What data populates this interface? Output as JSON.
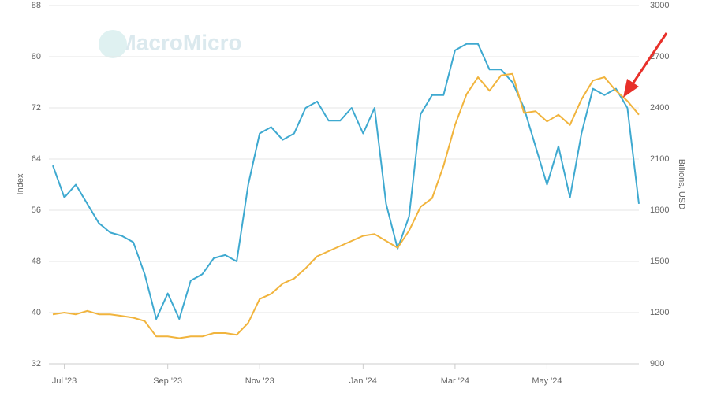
{
  "chart_data": {
    "type": "line",
    "watermark": "MacroMicro",
    "y_label": "Index",
    "y2_label": "Billions, USD",
    "x": [
      null,
      "Jul '23",
      null,
      null,
      null,
      null,
      null,
      null,
      null,
      null,
      "Sep '23",
      null,
      null,
      null,
      null,
      null,
      null,
      null,
      "Nov '23",
      null,
      null,
      null,
      null,
      null,
      null,
      null,
      null,
      "Jan '24",
      null,
      null,
      null,
      null,
      null,
      null,
      null,
      "Mar '24",
      null,
      null,
      null,
      null,
      null,
      null,
      null,
      "May '24",
      null,
      null,
      null,
      null,
      null,
      null,
      null,
      null
    ],
    "series": [
      {
        "color": "#3ea9d0",
        "values": [
          63,
          58,
          60,
          57,
          54,
          52.5,
          52,
          51,
          46,
          39,
          43,
          39,
          45,
          46,
          48.5,
          49,
          48,
          60,
          68,
          69,
          67,
          68,
          72,
          73,
          70,
          70,
          72,
          68,
          72,
          57,
          50,
          55,
          71,
          74,
          74,
          81,
          82,
          82,
          78,
          78,
          76,
          72,
          66,
          60,
          66,
          58,
          68,
          75,
          74,
          75,
          72,
          57
        ]
      },
      {
        "color": "#f1b43d",
        "axis": "y2",
        "values": [
          1190,
          1200,
          1190,
          1210,
          1190,
          1190,
          1180,
          1170,
          1150,
          1060,
          1060,
          1050,
          1060,
          1060,
          1080,
          1080,
          1070,
          1140,
          1280,
          1310,
          1370,
          1400,
          1460,
          1530,
          1560,
          1590,
          1620,
          1650,
          1660,
          1620,
          1580,
          1680,
          1820,
          1870,
          2060,
          2300,
          2480,
          2580,
          2500,
          2590,
          2600,
          2370,
          2380,
          2320,
          2360,
          2300,
          2450,
          2560,
          2580,
          2500,
          2440,
          2360
        ]
      }
    ],
    "ylim": [
      32,
      88
    ],
    "yticks": [
      32,
      40,
      48,
      56,
      64,
      72,
      80,
      88
    ],
    "y2lim": [
      900,
      3000
    ],
    "y2ticks": [
      900,
      1200,
      1500,
      1800,
      2100,
      2400,
      2700,
      3000
    ],
    "grid": true
  }
}
